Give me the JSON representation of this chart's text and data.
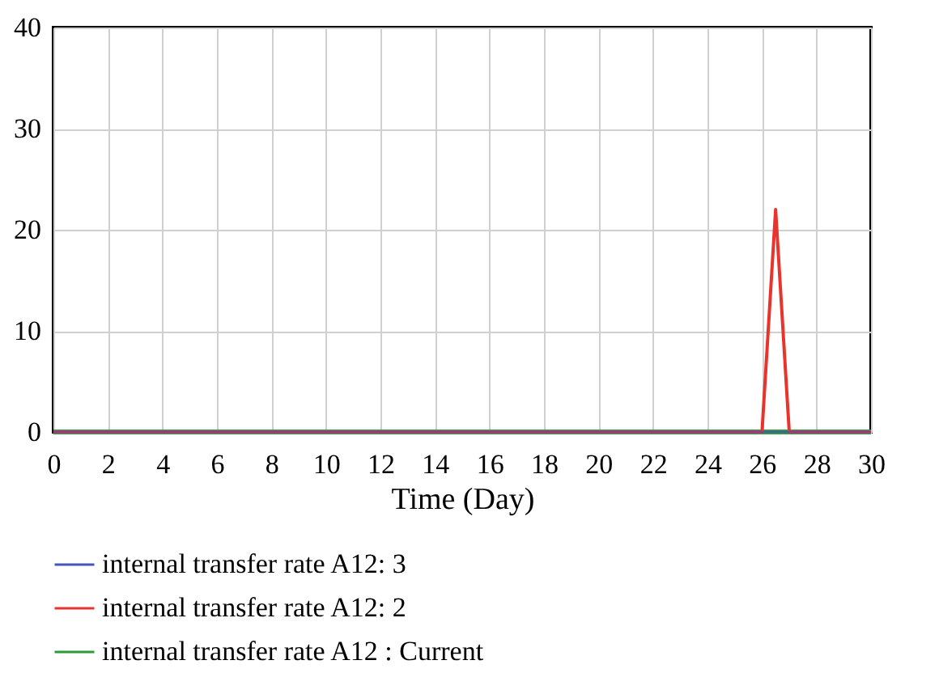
{
  "chart_data": {
    "type": "line",
    "xlabel": "Time (Day)",
    "xlim": [
      0,
      30
    ],
    "xticks": [
      0,
      2,
      4,
      6,
      8,
      10,
      12,
      14,
      16,
      18,
      20,
      22,
      24,
      26,
      28,
      30
    ],
    "ylim": [
      0,
      40
    ],
    "yticks": [
      0,
      10,
      20,
      30,
      40
    ],
    "grid": true,
    "legend": "bottom",
    "series": [
      {
        "name": "internal transfer rate A12: 3",
        "color": "#4455bb",
        "x": [
          0,
          30
        ],
        "values": [
          0,
          0
        ]
      },
      {
        "name": "internal transfer rate A12: 2",
        "color": "#e8342c",
        "x": [
          0,
          26,
          26.5,
          27,
          30
        ],
        "values": [
          0,
          0,
          22,
          0,
          0
        ]
      },
      {
        "name": "internal transfer rate A12 : Current",
        "color": "#2e9a3a",
        "x": [
          0,
          30
        ],
        "values": [
          0,
          0
        ]
      }
    ]
  }
}
